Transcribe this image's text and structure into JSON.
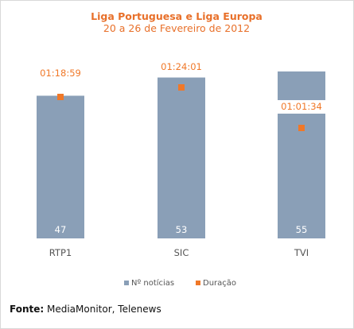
{
  "chart_data": {
    "type": "bar",
    "title": "Liga Portuguesa e Liga Europa",
    "subtitle": "20 a 26 de Fevereiro de 2012",
    "categories": [
      "RTP1",
      "SIC",
      "TVI"
    ],
    "series": [
      {
        "name": "Nº notícias",
        "kind": "bar",
        "values": [
          47,
          53,
          55
        ]
      },
      {
        "name": "Duração",
        "kind": "marker",
        "values": [
          "01:18:59",
          "01:24:01",
          "01:01:34"
        ]
      }
    ],
    "ylim": [
      0,
      60
    ],
    "grid": false,
    "legend_position": "bottom"
  },
  "colors": {
    "bar": "#8a9fb7",
    "accent": "#f07828",
    "title": "#e8702a"
  },
  "source": {
    "label": "Fonte:",
    "text": " MediaMonitor, Telenews"
  }
}
